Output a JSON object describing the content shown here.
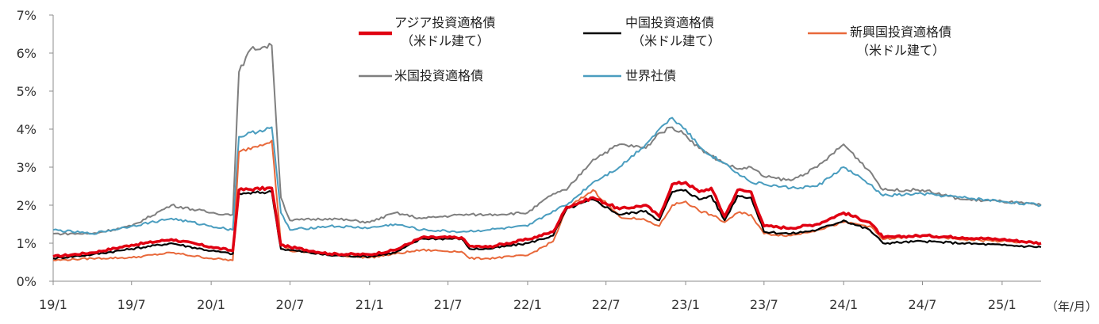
{
  "chart_data": {
    "type": "line",
    "title": "",
    "xlabel": "",
    "ylabel": "",
    "x_unit_label": "（年/月）",
    "ylim": [
      0,
      7
    ],
    "y_ticks": [
      0,
      1,
      2,
      3,
      4,
      5,
      6,
      7
    ],
    "y_tick_labels": [
      "0%",
      "1%",
      "2%",
      "3%",
      "4%",
      "5%",
      "6%",
      "7%"
    ],
    "x_tick_labels": [
      "19/1",
      "19/7",
      "20/1",
      "20/7",
      "21/1",
      "21/7",
      "22/1",
      "22/7",
      "23/1",
      "23/7",
      "24/1",
      "24/7",
      "25/1"
    ],
    "x_tick_dates": [
      "2019-01",
      "2019-07",
      "2020-01",
      "2020-07",
      "2021-01",
      "2021-07",
      "2022-01",
      "2022-07",
      "2023-01",
      "2023-07",
      "2024-01",
      "2024-07",
      "2025-01"
    ],
    "x_end": "2025-04",
    "grid": false,
    "legend_position": "top",
    "series": [
      {
        "name": "アジア投資適格債",
        "name_line2": "（米ドル建て）",
        "color": "#e00012",
        "points": [
          [
            "2019-01",
            0.65
          ],
          [
            "2019-04",
            0.75
          ],
          [
            "2019-07",
            0.95
          ],
          [
            "2019-10",
            1.1
          ],
          [
            "2020-01",
            0.9
          ],
          [
            "2020-02-20",
            0.8
          ],
          [
            "2020-03-05",
            2.4
          ],
          [
            "2020-05-20",
            2.45
          ],
          [
            "2020-06-10",
            0.95
          ],
          [
            "2020-07",
            0.9
          ],
          [
            "2020-10",
            0.72
          ],
          [
            "2021-01",
            0.7
          ],
          [
            "2021-03",
            0.82
          ],
          [
            "2021-05",
            1.15
          ],
          [
            "2021-08",
            1.15
          ],
          [
            "2021-08-20",
            0.92
          ],
          [
            "2021-10",
            0.9
          ],
          [
            "2022-01",
            1.1
          ],
          [
            "2022-03",
            1.3
          ],
          [
            "2022-04",
            1.95
          ],
          [
            "2022-06",
            2.2
          ],
          [
            "2022-08",
            1.9
          ],
          [
            "2022-10",
            2.0
          ],
          [
            "2022-11",
            1.7
          ],
          [
            "2022-12",
            2.55
          ],
          [
            "2023-01",
            2.6
          ],
          [
            "2023-02",
            2.35
          ],
          [
            "2023-03",
            2.45
          ],
          [
            "2023-04",
            1.7
          ],
          [
            "2023-05",
            2.4
          ],
          [
            "2023-06",
            2.35
          ],
          [
            "2023-07",
            1.45
          ],
          [
            "2023-09",
            1.4
          ],
          [
            "2023-11",
            1.5
          ],
          [
            "2024-01",
            1.8
          ],
          [
            "2024-03",
            1.55
          ],
          [
            "2024-04",
            1.15
          ],
          [
            "2024-07",
            1.2
          ],
          [
            "2024-10",
            1.15
          ],
          [
            "2025-01",
            1.1
          ],
          [
            "2025-04",
            1.0
          ]
        ]
      },
      {
        "name": "中国投資適格債",
        "name_line2": "（米ドル建て）",
        "color": "#000000",
        "points": [
          [
            "2019-01",
            0.6
          ],
          [
            "2019-04",
            0.7
          ],
          [
            "2019-07",
            0.85
          ],
          [
            "2019-10",
            1.0
          ],
          [
            "2020-01",
            0.8
          ],
          [
            "2020-02-20",
            0.72
          ],
          [
            "2020-03-05",
            2.3
          ],
          [
            "2020-05-20",
            2.35
          ],
          [
            "2020-06-10",
            0.85
          ],
          [
            "2020-07",
            0.82
          ],
          [
            "2020-10",
            0.68
          ],
          [
            "2021-01",
            0.65
          ],
          [
            "2021-03",
            0.75
          ],
          [
            "2021-05",
            1.12
          ],
          [
            "2021-08",
            1.12
          ],
          [
            "2021-08-20",
            0.85
          ],
          [
            "2021-10",
            0.85
          ],
          [
            "2022-01",
            1.0
          ],
          [
            "2022-03",
            1.2
          ],
          [
            "2022-04",
            1.9
          ],
          [
            "2022-06",
            2.15
          ],
          [
            "2022-08",
            1.75
          ],
          [
            "2022-10",
            1.85
          ],
          [
            "2022-11",
            1.6
          ],
          [
            "2022-12",
            2.35
          ],
          [
            "2023-01",
            2.4
          ],
          [
            "2023-02",
            2.15
          ],
          [
            "2023-03",
            2.25
          ],
          [
            "2023-04",
            1.6
          ],
          [
            "2023-05",
            2.25
          ],
          [
            "2023-06",
            2.2
          ],
          [
            "2023-07",
            1.3
          ],
          [
            "2023-09",
            1.25
          ],
          [
            "2023-11",
            1.35
          ],
          [
            "2024-01",
            1.6
          ],
          [
            "2024-03",
            1.35
          ],
          [
            "2024-04",
            1.0
          ],
          [
            "2024-07",
            1.05
          ],
          [
            "2024-10",
            1.0
          ],
          [
            "2025-01",
            0.95
          ],
          [
            "2025-04",
            0.9
          ]
        ]
      },
      {
        "name": "新興国投資適格債",
        "name_line2": "（米ドル建て）",
        "color": "#e8683a",
        "points": [
          [
            "2019-01",
            0.55
          ],
          [
            "2019-04",
            0.6
          ],
          [
            "2019-07",
            0.62
          ],
          [
            "2019-10",
            0.75
          ],
          [
            "2020-01",
            0.6
          ],
          [
            "2020-02-20",
            0.55
          ],
          [
            "2020-03-05",
            3.4
          ],
          [
            "2020-05-20",
            3.7
          ],
          [
            "2020-06-10",
            1.0
          ],
          [
            "2020-07",
            0.8
          ],
          [
            "2020-10",
            0.7
          ],
          [
            "2021-01",
            0.62
          ],
          [
            "2021-03",
            0.72
          ],
          [
            "2021-05",
            0.82
          ],
          [
            "2021-08",
            0.78
          ],
          [
            "2021-08-20",
            0.6
          ],
          [
            "2021-10",
            0.6
          ],
          [
            "2022-01",
            0.68
          ],
          [
            "2022-03",
            1.05
          ],
          [
            "2022-04",
            1.9
          ],
          [
            "2022-06",
            2.4
          ],
          [
            "2022-08",
            1.7
          ],
          [
            "2022-10",
            1.6
          ],
          [
            "2022-11",
            1.45
          ],
          [
            "2022-12",
            2.0
          ],
          [
            "2023-01",
            2.1
          ],
          [
            "2023-02",
            1.85
          ],
          [
            "2023-03",
            1.75
          ],
          [
            "2023-04",
            1.55
          ],
          [
            "2023-05",
            1.8
          ],
          [
            "2023-06",
            1.75
          ],
          [
            "2023-07",
            1.25
          ],
          [
            "2023-09",
            1.2
          ],
          [
            "2023-11",
            1.35
          ],
          [
            "2024-01",
            1.55
          ],
          [
            "2024-03",
            1.45
          ],
          [
            "2024-04",
            1.1
          ],
          [
            "2024-07",
            1.2
          ],
          [
            "2024-10",
            1.1
          ],
          [
            "2025-01",
            1.05
          ],
          [
            "2025-04",
            1.0
          ]
        ]
      },
      {
        "name": "米国投資適格債",
        "name_line2": "",
        "color": "#7f7f7f",
        "points": [
          [
            "2019-01",
            1.25
          ],
          [
            "2019-04",
            1.25
          ],
          [
            "2019-07",
            1.45
          ],
          [
            "2019-10",
            2.0
          ],
          [
            "2020-01",
            1.8
          ],
          [
            "2020-02-20",
            1.75
          ],
          [
            "2020-03-05",
            5.5
          ],
          [
            "2020-04-01",
            6.1
          ],
          [
            "2020-05-20",
            6.2
          ],
          [
            "2020-06-10",
            2.2
          ],
          [
            "2020-07",
            1.6
          ],
          [
            "2020-10",
            1.65
          ],
          [
            "2021-01",
            1.55
          ],
          [
            "2021-03",
            1.8
          ],
          [
            "2021-05",
            1.65
          ],
          [
            "2021-08",
            1.75
          ],
          [
            "2021-10",
            1.75
          ],
          [
            "2022-01",
            1.8
          ],
          [
            "2022-03",
            2.3
          ],
          [
            "2022-04",
            2.4
          ],
          [
            "2022-06",
            3.2
          ],
          [
            "2022-08",
            3.6
          ],
          [
            "2022-10",
            3.5
          ],
          [
            "2022-11",
            3.9
          ],
          [
            "2022-12",
            4.05
          ],
          [
            "2023-01",
            3.85
          ],
          [
            "2023-02",
            3.5
          ],
          [
            "2023-03",
            3.3
          ],
          [
            "2023-04",
            3.1
          ],
          [
            "2023-05",
            2.95
          ],
          [
            "2023-06",
            3.0
          ],
          [
            "2023-07",
            2.75
          ],
          [
            "2023-09",
            2.65
          ],
          [
            "2023-11",
            3.0
          ],
          [
            "2024-01",
            3.6
          ],
          [
            "2024-03",
            2.9
          ],
          [
            "2024-04",
            2.4
          ],
          [
            "2024-07",
            2.4
          ],
          [
            "2024-10",
            2.15
          ],
          [
            "2025-01",
            2.1
          ],
          [
            "2025-04",
            2.0
          ]
        ]
      },
      {
        "name": "世界社債",
        "name_line2": "",
        "color": "#4a9dbf",
        "points": [
          [
            "2019-01",
            1.35
          ],
          [
            "2019-04",
            1.25
          ],
          [
            "2019-07",
            1.45
          ],
          [
            "2019-10",
            1.65
          ],
          [
            "2020-01",
            1.45
          ],
          [
            "2020-02-20",
            1.35
          ],
          [
            "2020-03-05",
            3.8
          ],
          [
            "2020-05-20",
            4.05
          ],
          [
            "2020-06-10",
            1.8
          ],
          [
            "2020-07",
            1.35
          ],
          [
            "2020-10",
            1.45
          ],
          [
            "2021-01",
            1.4
          ],
          [
            "2021-03",
            1.5
          ],
          [
            "2021-05",
            1.35
          ],
          [
            "2021-08",
            1.3
          ],
          [
            "2021-10",
            1.35
          ],
          [
            "2022-01",
            1.45
          ],
          [
            "2022-03",
            1.85
          ],
          [
            "2022-04",
            2.0
          ],
          [
            "2022-06",
            2.6
          ],
          [
            "2022-08",
            3.0
          ],
          [
            "2022-10",
            3.6
          ],
          [
            "2022-11",
            4.0
          ],
          [
            "2022-12",
            4.3
          ],
          [
            "2023-01",
            4.0
          ],
          [
            "2023-02",
            3.55
          ],
          [
            "2023-03",
            3.3
          ],
          [
            "2023-04",
            3.1
          ],
          [
            "2023-05",
            2.85
          ],
          [
            "2023-06",
            2.6
          ],
          [
            "2023-07",
            2.55
          ],
          [
            "2023-09",
            2.45
          ],
          [
            "2023-11",
            2.5
          ],
          [
            "2024-01",
            3.0
          ],
          [
            "2024-03",
            2.55
          ],
          [
            "2024-04",
            2.25
          ],
          [
            "2024-07",
            2.3
          ],
          [
            "2024-10",
            2.2
          ],
          [
            "2025-01",
            2.1
          ],
          [
            "2025-04",
            2.0
          ]
        ]
      }
    ]
  }
}
